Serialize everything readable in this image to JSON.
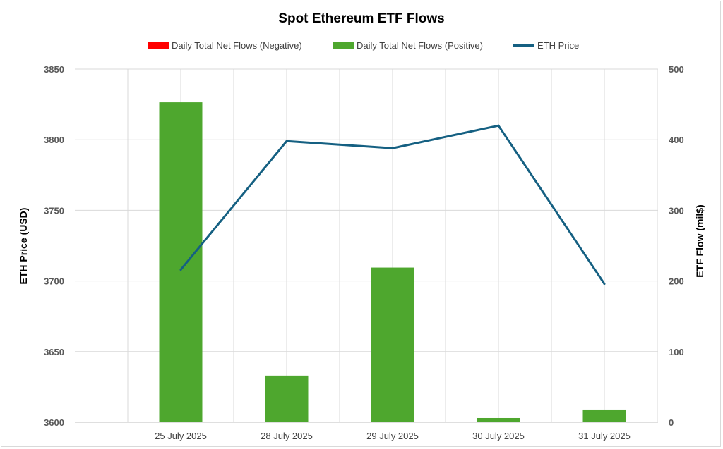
{
  "chart_data": {
    "type": "bar",
    "title": "Spot Ethereum ETF Flows",
    "categories": [
      "25 July 2025",
      "28 July 2025",
      "29 July 2025",
      "30 July 2025",
      "31 July 2025"
    ],
    "legend": {
      "placement": "top-center",
      "items": [
        {
          "label": "Daily Total Net Flows (Negative)",
          "kind": "bar",
          "color": "#ff0000"
        },
        {
          "label": "Daily Total Net Flows (Positive)",
          "kind": "bar",
          "color": "#4ea72e"
        },
        {
          "label": "ETH Price",
          "kind": "line",
          "color": "#156082"
        }
      ]
    },
    "y_left": {
      "label": "ETH Price (USD)",
      "ylim": [
        3600,
        3850
      ],
      "ticks": [
        "3600",
        "3650",
        "3700",
        "3750",
        "3800",
        "3850"
      ]
    },
    "y_right": {
      "label": "ETF Flow (mil$)",
      "ylim": [
        0,
        500
      ],
      "ticks": [
        "0",
        "100",
        "200",
        "300",
        "400",
        "500"
      ]
    },
    "grid": true,
    "series": [
      {
        "name": "Daily Total Net Flows (Negative)",
        "type": "bar",
        "axis": "right",
        "color": "#ff0000",
        "values": [
          0,
          0,
          0,
          0,
          0
        ]
      },
      {
        "name": "Daily Total Net Flows (Positive)",
        "type": "bar",
        "axis": "right",
        "color": "#4ea72e",
        "values": [
          453,
          66,
          219,
          6,
          18
        ]
      },
      {
        "name": "ETH Price",
        "type": "line",
        "axis": "left",
        "color": "#156082",
        "values": [
          3708,
          3799,
          3794,
          3810,
          3698
        ]
      }
    ]
  }
}
